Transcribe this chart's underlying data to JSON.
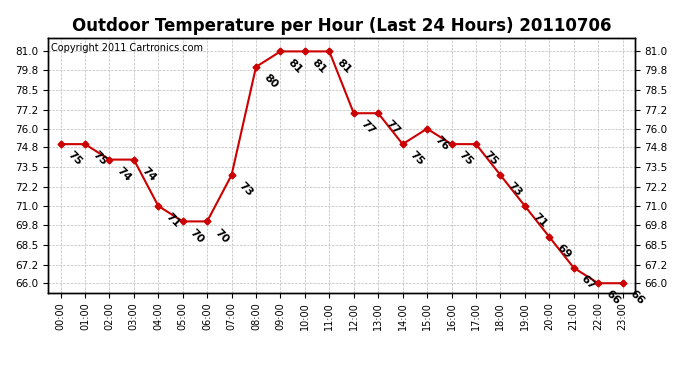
{
  "title": "Outdoor Temperature per Hour (Last 24 Hours) 20110706",
  "copyright": "Copyright 2011 Cartronics.com",
  "hours": [
    "00:00",
    "01:00",
    "02:00",
    "03:00",
    "04:00",
    "05:00",
    "06:00",
    "07:00",
    "08:00",
    "09:00",
    "10:00",
    "11:00",
    "12:00",
    "13:00",
    "14:00",
    "15:00",
    "16:00",
    "17:00",
    "18:00",
    "19:00",
    "20:00",
    "21:00",
    "22:00",
    "23:00"
  ],
  "temperatures": [
    75,
    75,
    74,
    74,
    71,
    70,
    70,
    73,
    80,
    81,
    81,
    81,
    77,
    77,
    75,
    76,
    75,
    75,
    73,
    71,
    69,
    67,
    66,
    66
  ],
  "line_color": "#cc0000",
  "marker_color": "#cc0000",
  "bg_color": "#ffffff",
  "grid_color": "#bbbbbb",
  "ylim_min": 65.4,
  "ylim_max": 81.9,
  "yticks": [
    66.0,
    67.2,
    68.5,
    69.8,
    71.0,
    72.2,
    73.5,
    74.8,
    76.0,
    77.2,
    78.5,
    79.8,
    81.0
  ],
  "title_fontsize": 12,
  "copyright_fontsize": 7,
  "label_fontsize": 8
}
